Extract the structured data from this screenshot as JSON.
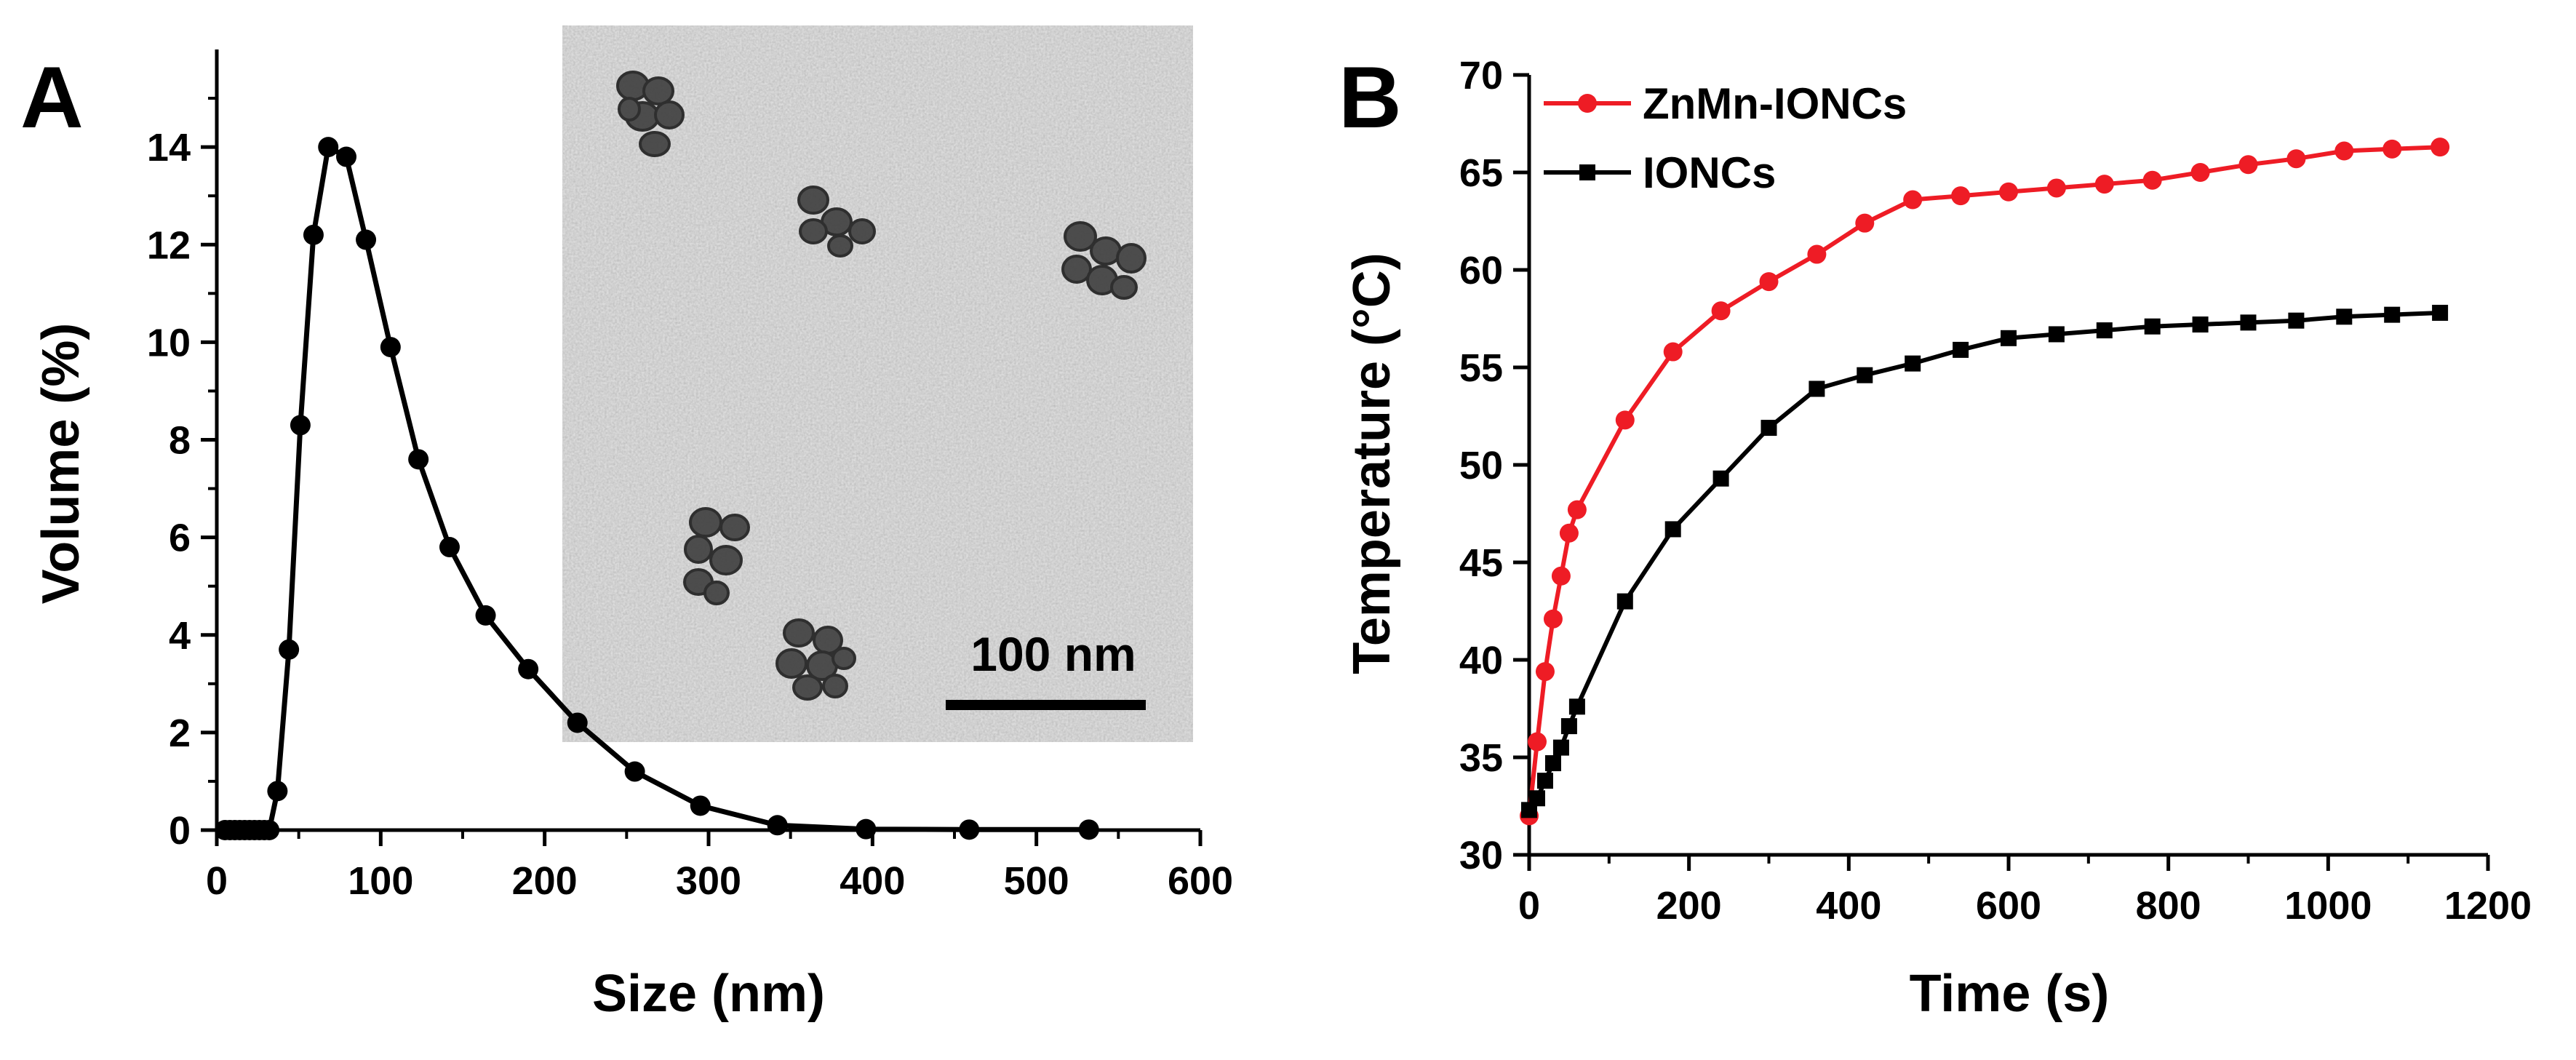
{
  "chart_data": [
    {
      "panel": "A",
      "type": "line",
      "xlabel": "Size (nm)",
      "ylabel": "Volume (%)",
      "xlim": [
        0,
        600
      ],
      "ylim": [
        0,
        16
      ],
      "xticks": [
        0,
        100,
        200,
        300,
        400,
        500,
        600
      ],
      "yticks": [
        0,
        2,
        4,
        6,
        8,
        10,
        12,
        14
      ],
      "grid": false,
      "series": [
        {
          "color": "#000000",
          "marker": "circle",
          "x": [
            5,
            8,
            11,
            14,
            17,
            20,
            23,
            26,
            29,
            32,
            37,
            44,
            51,
            59,
            68,
            79,
            91,
            106,
            123,
            142,
            164,
            190,
            220,
            255,
            295,
            342,
            396,
            459,
            532
          ],
          "y": [
            0,
            0,
            0,
            0,
            0,
            0,
            0,
            0,
            0,
            0,
            0.8,
            3.7,
            8.3,
            12.2,
            14.0,
            13.8,
            12.1,
            9.9,
            7.6,
            5.8,
            4.4,
            3.3,
            2.2,
            1.2,
            0.5,
            0.1,
            0.02,
            0.01,
            0.01
          ]
        }
      ],
      "inset": {
        "kind": "TEM micrograph",
        "scale_bar_label": "100 nm"
      }
    },
    {
      "panel": "B",
      "type": "line",
      "xlabel": "Time (s)",
      "ylabel": "Temperature (°C)",
      "xlim": [
        0,
        1200
      ],
      "ylim": [
        30,
        70
      ],
      "xticks": [
        0,
        200,
        400,
        600,
        800,
        1000,
        1200
      ],
      "yticks": [
        30,
        35,
        40,
        45,
        50,
        55,
        60,
        65,
        70
      ],
      "grid": false,
      "legend_position": "top-left",
      "series": [
        {
          "name": "ZnMn-IONCs",
          "color": "#ee1c25",
          "marker": "circle",
          "x": [
            0,
            10,
            20,
            30,
            40,
            50,
            60,
            120,
            180,
            240,
            300,
            360,
            420,
            480,
            540,
            600,
            660,
            720,
            780,
            840,
            900,
            960,
            1020,
            1080,
            1140
          ],
          "y": [
            32.0,
            35.8,
            39.4,
            42.1,
            44.3,
            46.5,
            47.7,
            52.3,
            55.8,
            57.9,
            59.4,
            60.8,
            62.4,
            63.6,
            63.8,
            64.0,
            64.2,
            64.4,
            64.6,
            65.0,
            65.4,
            65.7,
            66.1,
            66.2,
            66.3
          ]
        },
        {
          "name": "IONCs",
          "color": "#000000",
          "marker": "square",
          "x": [
            0,
            10,
            20,
            30,
            40,
            50,
            60,
            120,
            180,
            240,
            300,
            360,
            420,
            480,
            540,
            600,
            660,
            720,
            780,
            840,
            900,
            960,
            1020,
            1080,
            1140
          ],
          "y": [
            32.3,
            32.9,
            33.8,
            34.7,
            35.5,
            36.6,
            37.6,
            43.0,
            46.7,
            49.3,
            51.9,
            53.9,
            54.6,
            55.2,
            55.9,
            56.5,
            56.7,
            56.9,
            57.1,
            57.2,
            57.3,
            57.4,
            57.6,
            57.7,
            57.8
          ]
        }
      ]
    }
  ]
}
